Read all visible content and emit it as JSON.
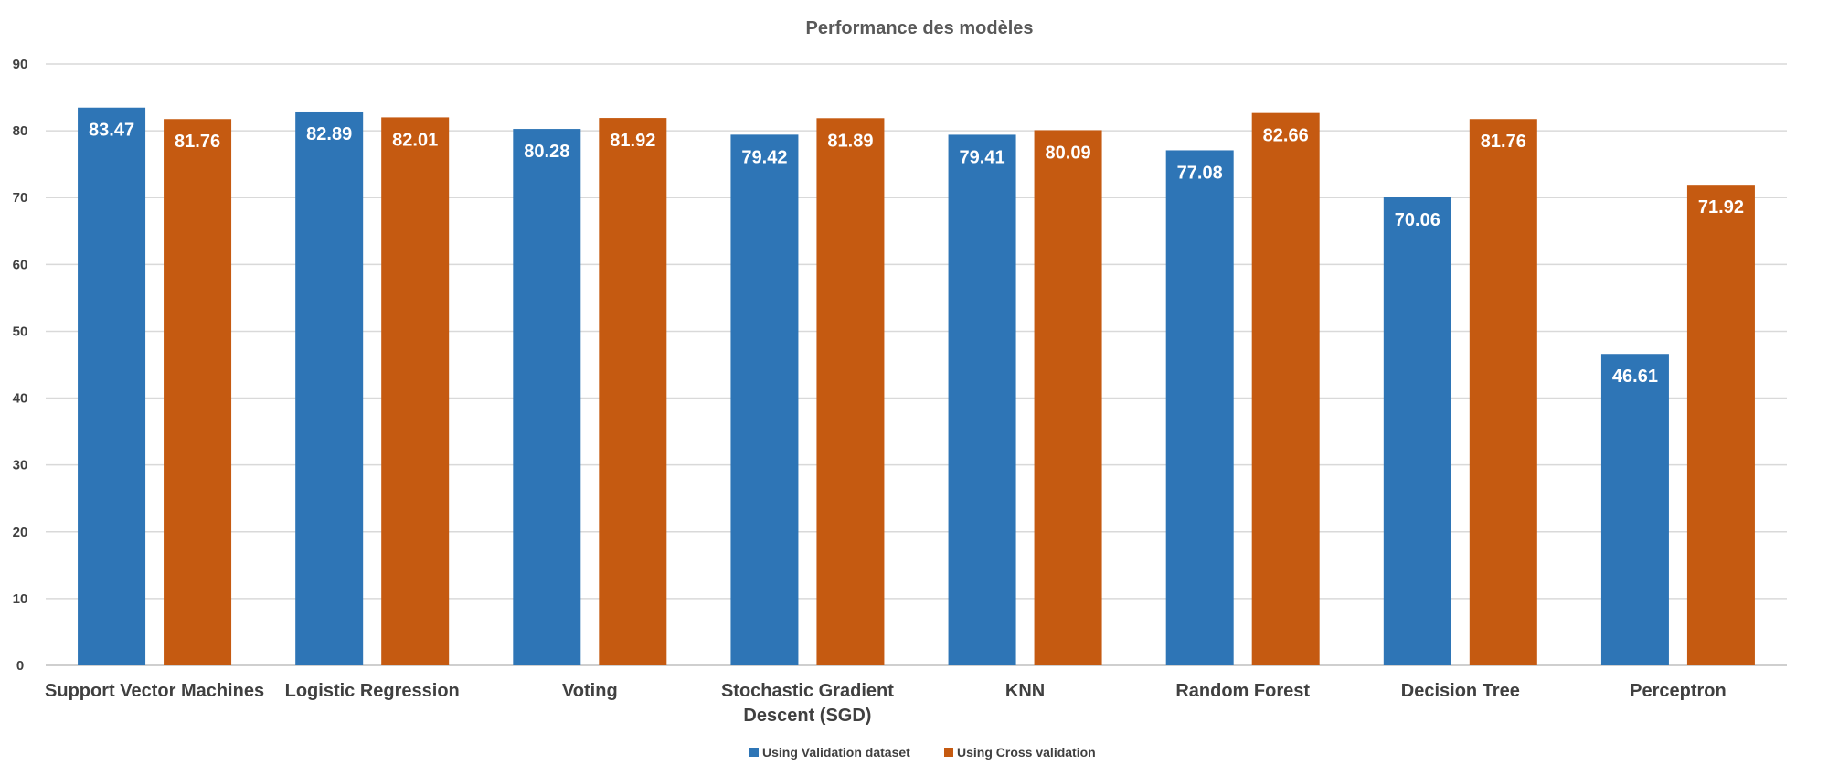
{
  "chart_data": {
    "type": "bar",
    "title": "Performance des modèles",
    "xlabel": "",
    "ylabel": "",
    "ylim": [
      0,
      90
    ],
    "yticks": [
      0,
      10,
      20,
      30,
      40,
      50,
      60,
      70,
      80,
      90
    ],
    "grid": true,
    "legend": "bottom",
    "categories": [
      [
        "Support Vector Machines"
      ],
      [
        "Logistic Regression"
      ],
      [
        "Voting"
      ],
      [
        "Stochastic Gradient",
        "Descent (SGD)"
      ],
      [
        "KNN"
      ],
      [
        "Random Forest"
      ],
      [
        "Decision Tree"
      ],
      [
        "Perceptron"
      ]
    ],
    "series": [
      {
        "name": "Using Validation dataset",
        "color": "#2e75b6",
        "values": [
          83.47,
          82.89,
          80.28,
          79.42,
          79.41,
          77.08,
          70.06,
          46.61
        ]
      },
      {
        "name": "Using Cross validation",
        "color": "#c55a11",
        "values": [
          81.76,
          82.01,
          81.92,
          81.89,
          80.09,
          82.66,
          81.76,
          71.92
        ]
      }
    ]
  }
}
